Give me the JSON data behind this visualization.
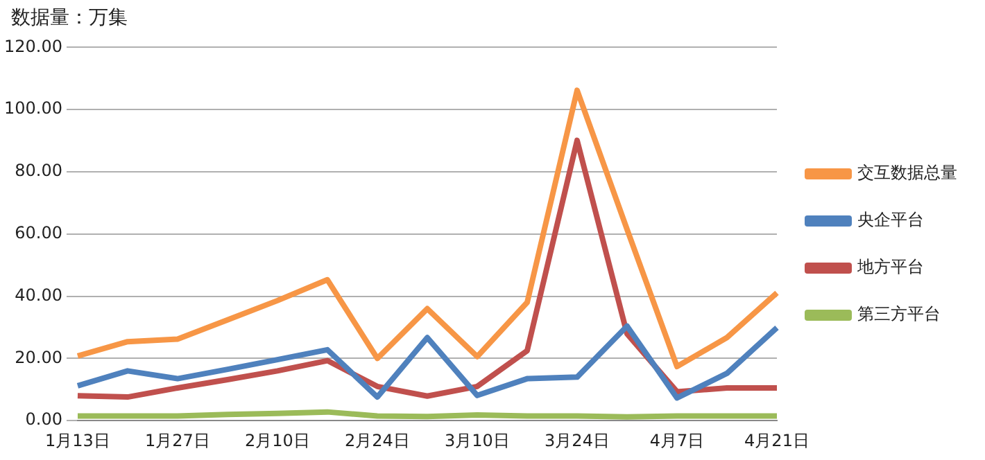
{
  "chart_data": {
    "type": "line",
    "ylabel": "数据量：万集",
    "categories": [
      "1月13日",
      null,
      "1月27日",
      null,
      "2月10日",
      null,
      "2月24日",
      null,
      "3月10日",
      null,
      "3月24日",
      null,
      "4月7日",
      null,
      "4月21日"
    ],
    "series": [
      {
        "name": "交互数据总量",
        "color": "#f79646",
        "values": [
          20.8,
          25.4,
          26.2,
          32.4,
          38.6,
          45.3,
          20,
          36,
          20.6,
          38,
          106.2,
          61.5,
          17.4,
          26.7,
          41.1
        ]
      },
      {
        "name": "央企平台",
        "color": "#4f81bd",
        "values": [
          11.2,
          16,
          13.5,
          16.5,
          19.6,
          22.8,
          7.6,
          26.7,
          8.1,
          13.5,
          14,
          30.4,
          7.3,
          15.2,
          29.9
        ]
      },
      {
        "name": "地方平台",
        "color": "#c0504d",
        "values": [
          8,
          7.6,
          10.5,
          13.2,
          16,
          19.3,
          11,
          7.9,
          11,
          22.5,
          90.1,
          27.9,
          9.3,
          10.5,
          10.5
        ]
      },
      {
        "name": "第三方平台",
        "color": "#9bbb59",
        "values": [
          1.5,
          1.5,
          1.5,
          2,
          2.3,
          2.8,
          1.5,
          1.3,
          1.8,
          1.5,
          1.5,
          1.2,
          1.5,
          1.5,
          1.5
        ]
      }
    ],
    "ylim": [
      0,
      120
    ],
    "yticks": [
      {
        "value": 0,
        "label": "0.00"
      },
      {
        "value": 20,
        "label": "20.00"
      },
      {
        "value": 40,
        "label": "40.00"
      },
      {
        "value": 60,
        "label": "60.00"
      },
      {
        "value": 80,
        "label": "80.00"
      },
      {
        "value": 100,
        "label": "100.00"
      },
      {
        "value": 120,
        "label": "120.00"
      }
    ],
    "grid": "y",
    "legend": "right",
    "marker": "none",
    "line_style": "solid"
  }
}
